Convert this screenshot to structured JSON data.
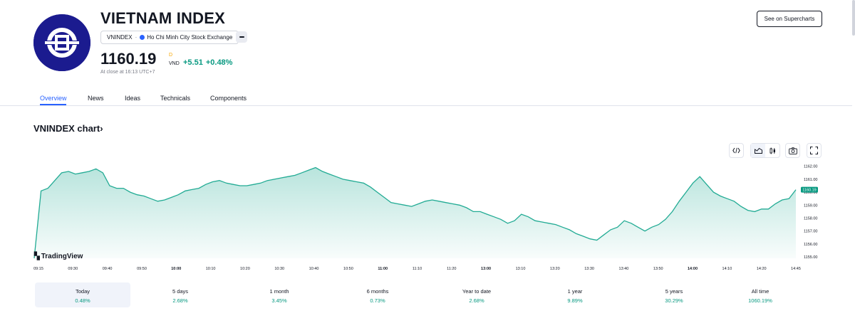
{
  "header": {
    "title": "VIETNAM INDEX",
    "symbol": "VNINDEX",
    "separator": "·",
    "exchange": "Ho Chi Minh City Stock Exchange",
    "price": "1160.19",
    "price_marker": "D",
    "currency": "VND",
    "change_abs": "+5.51",
    "change_pct": "+0.48%",
    "close_note": "At close at 16:13 UTC+7",
    "supercharts_label": "See on Supercharts",
    "logo_icon": "vnindex-logo-icon",
    "more_icon": "minus-icon"
  },
  "tabs": [
    {
      "label": "Overview",
      "active": true
    },
    {
      "label": "News"
    },
    {
      "label": "Ideas"
    },
    {
      "label": "Technicals"
    },
    {
      "label": "Components"
    }
  ],
  "chart_section": {
    "title": "VNINDEX chart",
    "title_arrow": "›",
    "tools": [
      "embed-code-icon",
      "line-chart-icon",
      "candlestick-icon",
      "camera-icon",
      "fullscreen-icon"
    ],
    "watermark": "TradingView",
    "watermark_icon": "tradingview-logo-icon"
  },
  "periods": [
    {
      "label": "Today",
      "value": "0.48%",
      "selected": true
    },
    {
      "label": "5 days",
      "value": "2.68%"
    },
    {
      "label": "1 month",
      "value": "3.45%"
    },
    {
      "label": "6 months",
      "value": "0.73%"
    },
    {
      "label": "Year to date",
      "value": "2.68%"
    },
    {
      "label": "1 year",
      "value": "9.89%"
    },
    {
      "label": "5 years",
      "value": "30.29%"
    },
    {
      "label": "All time",
      "value": "1060.19%"
    }
  ],
  "colors": {
    "accent": "#2962ff",
    "positive": "#089981",
    "logo_bg": "#1b1b8f",
    "line": "#22ab94"
  },
  "chart_data": {
    "type": "area",
    "x_ticks": [
      "09:15",
      "09:30",
      "09:40",
      "09:50",
      "10:00",
      "10:10",
      "10:20",
      "10:30",
      "10:40",
      "10:50",
      "11:00",
      "11:10",
      "11:20",
      "13:00",
      "13:10",
      "13:20",
      "13:30",
      "13:40",
      "13:50",
      "14:00",
      "14:10",
      "14:20",
      "14:45"
    ],
    "x_ticks_bold": [
      "10:00",
      "11:00",
      "13:00",
      "14:00"
    ],
    "y_ticks": [
      "1162.00",
      "1161.00",
      "1160.00",
      "1159.00",
      "1158.00",
      "1157.00",
      "1156.00",
      "1155.00"
    ],
    "ylim": [
      1154.9,
      1162.2
    ],
    "last_value_label": "1160.19",
    "series": [
      {
        "values": [
          1154.9,
          1160.1,
          1160.3,
          1160.9,
          1161.5,
          1161.6,
          1161.4,
          1161.5,
          1161.6,
          1161.8,
          1161.5,
          1160.5,
          1160.3,
          1160.3,
          1160.0,
          1159.8,
          1159.7,
          1159.5,
          1159.3,
          1159.4,
          1159.6,
          1159.8,
          1160.1,
          1160.2,
          1160.3,
          1160.6,
          1160.8,
          1160.9,
          1160.7,
          1160.6,
          1160.5,
          1160.5,
          1160.6,
          1160.7,
          1160.9,
          1161.0,
          1161.1,
          1161.2,
          1161.3,
          1161.5,
          1161.7,
          1161.9,
          1161.6,
          1161.4,
          1161.2,
          1161.0,
          1160.9,
          1160.8,
          1160.7,
          1160.4,
          1160.0,
          1159.6,
          1159.2,
          1159.1,
          1159.0,
          1158.9,
          1159.1,
          1159.3,
          1159.4,
          1159.3,
          1159.2,
          1159.1,
          1159.0,
          1158.8,
          1158.5,
          1158.5,
          1158.3,
          1158.1,
          1157.9,
          1157.6,
          1157.8,
          1158.3,
          1158.1,
          1157.8,
          1157.7,
          1157.6,
          1157.5,
          1157.3,
          1157.1,
          1156.8,
          1156.6,
          1156.4,
          1156.3,
          1156.7,
          1157.1,
          1157.3,
          1157.8,
          1157.6,
          1157.3,
          1157.0,
          1157.3,
          1157.5,
          1157.9,
          1158.5,
          1159.3,
          1160.0,
          1160.7,
          1161.2,
          1160.6,
          1160.0,
          1159.7,
          1159.5,
          1159.3,
          1158.9,
          1158.6,
          1158.5,
          1158.7,
          1158.7,
          1159.1,
          1159.4,
          1159.5,
          1160.19
        ]
      }
    ]
  }
}
